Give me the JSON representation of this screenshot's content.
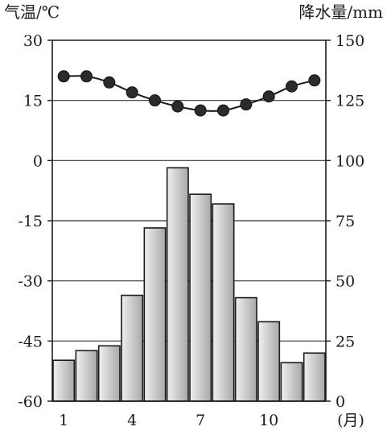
{
  "chart_data": {
    "type": "bar",
    "ylabel_left": "气温/℃",
    "ylabel_right": "降水量/mm",
    "xlabel": "(月)",
    "categories": [
      "1",
      "2",
      "3",
      "4",
      "5",
      "6",
      "7",
      "8",
      "9",
      "10",
      "11",
      "12"
    ],
    "x_tick_labels": [
      "1",
      "4",
      "7",
      "10"
    ],
    "left_axis": {
      "ylim": [
        -60,
        30
      ],
      "ticks": [
        "30",
        "15",
        "0",
        "-15",
        "-30",
        "-45",
        "-60"
      ],
      "tick_values": [
        30,
        15,
        0,
        -15,
        -30,
        -45,
        -60
      ]
    },
    "right_axis": {
      "ylim": [
        0,
        150
      ],
      "ticks": [
        "150",
        "125",
        "100",
        "75",
        "50",
        "25",
        "0"
      ],
      "tick_values": [
        150,
        125,
        100,
        75,
        50,
        25,
        0
      ]
    },
    "series": [
      {
        "type": "bar",
        "axis": "right",
        "values": [
          17,
          21,
          23,
          44,
          72,
          97,
          86,
          82,
          43,
          33,
          16,
          20
        ]
      },
      {
        "type": "line",
        "axis": "left",
        "values": [
          21,
          21,
          19.5,
          17,
          15,
          13.5,
          12.5,
          12.5,
          14,
          16,
          18.5,
          20
        ]
      }
    ],
    "grid": "horizontal",
    "colors": {
      "bar_fill": "#c8c8c8",
      "bar_stroke": "#1a1a1a",
      "line": "#1a1a1a",
      "marker": "#2b2b2b"
    }
  }
}
